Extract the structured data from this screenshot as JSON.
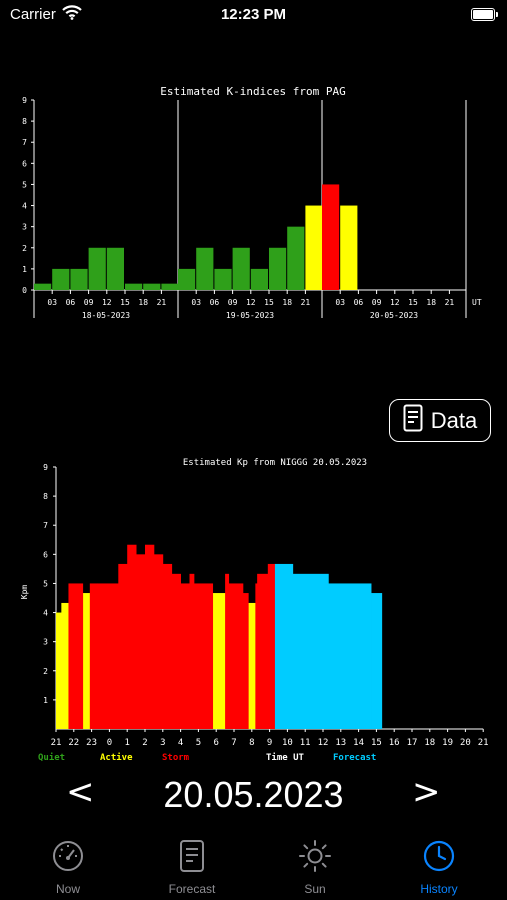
{
  "status": {
    "carrier": "Carrier",
    "time": "12:23 PM"
  },
  "data_button": {
    "label": "Data",
    "icon": "document-icon"
  },
  "date_nav": {
    "prev": "<",
    "date": "20.05.2023",
    "next": ">"
  },
  "tabs": [
    {
      "label": "Now",
      "icon": "gauge-icon",
      "active": false
    },
    {
      "label": "Forecast",
      "icon": "document-icon",
      "active": false
    },
    {
      "label": "Sun",
      "icon": "sun-icon",
      "active": false
    },
    {
      "label": "History",
      "icon": "clock-icon",
      "active": true
    }
  ],
  "colors": {
    "quiet": "#2fa01a",
    "active": "#ffff00",
    "storm": "#ff0000",
    "forecast": "#00ccff",
    "tab_active": "#0a84ff",
    "tab_inactive": "#8e8e93"
  },
  "chart_data": [
    {
      "type": "bar",
      "title": "Estimated K-indices from PAG",
      "ylim": [
        0,
        9
      ],
      "yticks": [
        "0",
        "1",
        "2",
        "3",
        "4",
        "5",
        "6",
        "7",
        "8",
        "9"
      ],
      "x_unit_label": "UT",
      "days": [
        {
          "date": "18-05-2023",
          "hour_ticks": [
            "03",
            "06",
            "09",
            "12",
            "15",
            "18",
            "21"
          ],
          "values": [
            0.3,
            1,
            1,
            2,
            2,
            0.3,
            0.3,
            0.3
          ]
        },
        {
          "date": "19-05-2023",
          "hour_ticks": [
            "03",
            "06",
            "09",
            "12",
            "15",
            "18",
            "21"
          ],
          "values": [
            1,
            2,
            1,
            2,
            1,
            2,
            3,
            4
          ]
        },
        {
          "date": "20-05-2023",
          "hour_ticks": [
            "03",
            "06",
            "09",
            "12",
            "15",
            "18",
            "21"
          ],
          "values": [
            5,
            4
          ]
        }
      ]
    },
    {
      "type": "bar",
      "title": "Estimated Kp from NIGGG 20.05.2023",
      "ylabel": "Kpm",
      "xlabel": "Time UT",
      "ylim": [
        0,
        9
      ],
      "yticks": [
        "1",
        "2",
        "3",
        "4",
        "5",
        "6",
        "7",
        "8",
        "9"
      ],
      "x_ticks": [
        "21",
        "22",
        "23",
        "0",
        "1",
        "2",
        "3",
        "4",
        "5",
        "6",
        "7",
        "8",
        "9",
        "10",
        "11",
        "12",
        "13",
        "14",
        "15",
        "16",
        "17",
        "18",
        "19",
        "20",
        "21"
      ],
      "legend": [
        "Quiet",
        "Active",
        "Storm",
        "Forecast"
      ],
      "series": [
        {
          "name": "Active",
          "segments": [
            [
              21.0,
              21.3,
              4.0
            ],
            [
              21.3,
              21.7,
              4.33
            ],
            [
              22.5,
              22.9,
              4.67
            ],
            [
              5.8,
              6.5,
              4.67
            ],
            [
              7.8,
              8.2,
              4.33
            ]
          ]
        },
        {
          "name": "Storm",
          "segments": [
            [
              21.7,
              22.5,
              5.0
            ],
            [
              22.9,
              23.3,
              5.0
            ],
            [
              23.3,
              0.5,
              5.0
            ],
            [
              0.5,
              1.0,
              5.67
            ],
            [
              1.0,
              1.5,
              6.33
            ],
            [
              1.5,
              2.0,
              6.0
            ],
            [
              2.0,
              2.5,
              6.33
            ],
            [
              2.5,
              3.0,
              6.0
            ],
            [
              3.0,
              3.5,
              5.67
            ],
            [
              3.5,
              4.0,
              5.33
            ],
            [
              4.0,
              4.5,
              5.0
            ],
            [
              4.5,
              4.75,
              5.33
            ],
            [
              4.75,
              5.8,
              5.0
            ],
            [
              6.5,
              6.7,
              5.33
            ],
            [
              6.7,
              7.5,
              5.0
            ],
            [
              7.5,
              7.8,
              4.67
            ],
            [
              8.2,
              8.3,
              5.0
            ],
            [
              8.3,
              8.9,
              5.33
            ],
            [
              8.9,
              9.3,
              5.67
            ]
          ]
        },
        {
          "name": "Forecast",
          "segments": [
            [
              9.3,
              10.3,
              5.67
            ],
            [
              10.3,
              12.3,
              5.33
            ],
            [
              12.3,
              14.7,
              5.0
            ],
            [
              14.7,
              15.3,
              4.67
            ]
          ]
        }
      ]
    }
  ]
}
